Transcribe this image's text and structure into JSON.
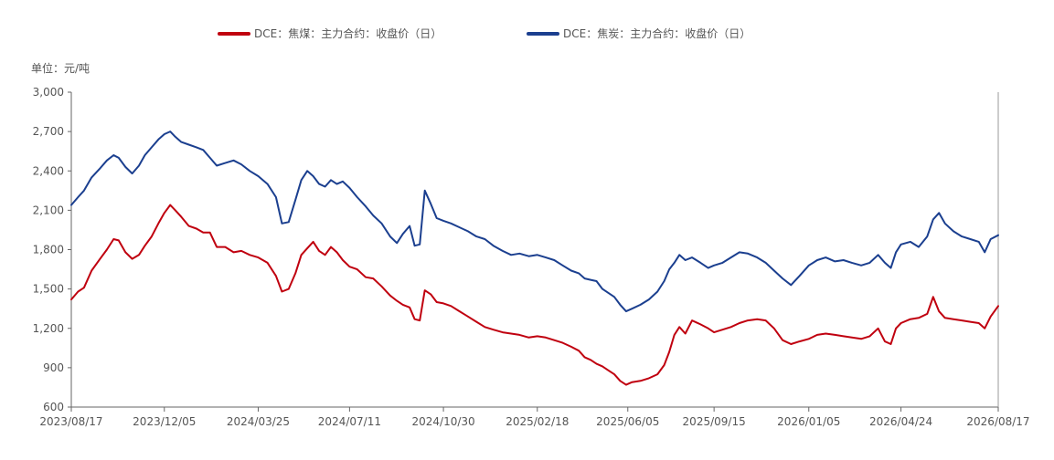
{
  "chart_data": {
    "type": "line",
    "title": "",
    "unit_label": "单位：元/吨",
    "xlabel": "",
    "ylabel": "",
    "ylim": [
      600,
      3000
    ],
    "yticks": [
      "3,000",
      "2,700",
      "2,400",
      "2,100",
      "1,800",
      "1,500",
      "1,200",
      "900",
      "600"
    ],
    "ytick_values": [
      3000,
      2700,
      2400,
      2100,
      1800,
      1500,
      1200,
      900,
      600
    ],
    "x_tick_labels": [
      "2023/08/17",
      "2023/12/05",
      "2024/03/25",
      "2024/07/11",
      "2024/10/30",
      "2025/02/18",
      "2025/06/05",
      "2025/09/15",
      "2026/01/05",
      "2026/04/24",
      "2026/08/17"
    ],
    "xlim": [
      "2023/08/17",
      "2026/08/17"
    ],
    "grid": false,
    "legend_position": "top-center",
    "series": [
      {
        "name": "DCE：焦煤：主力合约：收盘价（日）",
        "color": "#c0000f",
        "points": [
          [
            "2023/08/17",
            1420
          ],
          [
            "2023/08/25",
            1480
          ],
          [
            "2023/09/01",
            1510
          ],
          [
            "2023/09/10",
            1640
          ],
          [
            "2023/09/20",
            1730
          ],
          [
            "2023/09/28",
            1800
          ],
          [
            "2023/10/06",
            1880
          ],
          [
            "2023/10/12",
            1870
          ],
          [
            "2023/10/20",
            1780
          ],
          [
            "2023/10/28",
            1730
          ],
          [
            "2023/11/05",
            1760
          ],
          [
            "2023/11/12",
            1830
          ],
          [
            "2023/11/20",
            1900
          ],
          [
            "2023/11/28",
            2000
          ],
          [
            "2023/12/05",
            2080
          ],
          [
            "2023/12/12",
            2140
          ],
          [
            "2023/12/18",
            2100
          ],
          [
            "2023/12/25",
            2050
          ],
          [
            "2024/01/03",
            1980
          ],
          [
            "2024/01/12",
            1960
          ],
          [
            "2024/01/20",
            1930
          ],
          [
            "2024/01/28",
            1930
          ],
          [
            "2024/02/05",
            1820
          ],
          [
            "2024/02/15",
            1820
          ],
          [
            "2024/02/25",
            1780
          ],
          [
            "2024/03/05",
            1790
          ],
          [
            "2024/03/15",
            1760
          ],
          [
            "2024/03/25",
            1740
          ],
          [
            "2024/04/05",
            1700
          ],
          [
            "2024/04/15",
            1600
          ],
          [
            "2024/04/22",
            1480
          ],
          [
            "2024/04/30",
            1500
          ],
          [
            "2024/05/08",
            1620
          ],
          [
            "2024/05/15",
            1760
          ],
          [
            "2024/05/22",
            1810
          ],
          [
            "2024/05/29",
            1860
          ],
          [
            "2024/06/05",
            1790
          ],
          [
            "2024/06/12",
            1760
          ],
          [
            "2024/06/19",
            1820
          ],
          [
            "2024/06/26",
            1780
          ],
          [
            "2024/07/03",
            1720
          ],
          [
            "2024/07/11",
            1670
          ],
          [
            "2024/07/20",
            1650
          ],
          [
            "2024/07/30",
            1590
          ],
          [
            "2024/08/08",
            1580
          ],
          [
            "2024/08/18",
            1520
          ],
          [
            "2024/08/28",
            1450
          ],
          [
            "2024/09/05",
            1410
          ],
          [
            "2024/09/12",
            1380
          ],
          [
            "2024/09/20",
            1360
          ],
          [
            "2024/09/26",
            1270
          ],
          [
            "2024/10/02",
            1260
          ],
          [
            "2024/10/08",
            1490
          ],
          [
            "2024/10/15",
            1460
          ],
          [
            "2024/10/22",
            1400
          ],
          [
            "2024/10/30",
            1390
          ],
          [
            "2024/11/08",
            1370
          ],
          [
            "2024/11/18",
            1330
          ],
          [
            "2024/11/28",
            1290
          ],
          [
            "2024/12/08",
            1250
          ],
          [
            "2024/12/18",
            1210
          ],
          [
            "2024/12/28",
            1190
          ],
          [
            "2025/01/08",
            1170
          ],
          [
            "2025/01/18",
            1160
          ],
          [
            "2025/01/28",
            1150
          ],
          [
            "2025/02/08",
            1130
          ],
          [
            "2025/02/18",
            1140
          ],
          [
            "2025/02/28",
            1130
          ],
          [
            "2025/03/10",
            1110
          ],
          [
            "2025/03/20",
            1090
          ],
          [
            "2025/03/30",
            1060
          ],
          [
            "2025/04/08",
            1030
          ],
          [
            "2025/04/15",
            980
          ],
          [
            "2025/04/22",
            960
          ],
          [
            "2025/04/29",
            930
          ],
          [
            "2025/05/06",
            910
          ],
          [
            "2025/05/13",
            880
          ],
          [
            "2025/05/20",
            850
          ],
          [
            "2025/05/27",
            800
          ],
          [
            "2025/06/03",
            770
          ],
          [
            "2025/06/10",
            790
          ],
          [
            "2025/06/20",
            800
          ],
          [
            "2025/06/30",
            820
          ],
          [
            "2025/07/10",
            850
          ],
          [
            "2025/07/18",
            920
          ],
          [
            "2025/07/24",
            1020
          ],
          [
            "2025/07/30",
            1150
          ],
          [
            "2025/08/05",
            1210
          ],
          [
            "2025/08/12",
            1160
          ],
          [
            "2025/08/20",
            1260
          ],
          [
            "2025/08/30",
            1230
          ],
          [
            "2025/09/08",
            1200
          ],
          [
            "2025/09/15",
            1170
          ],
          [
            "2025/09/25",
            1190
          ],
          [
            "2025/10/05",
            1210
          ],
          [
            "2025/10/15",
            1240
          ],
          [
            "2025/10/25",
            1260
          ],
          [
            "2025/11/05",
            1270
          ],
          [
            "2025/11/15",
            1260
          ],
          [
            "2025/11/25",
            1200
          ],
          [
            "2025/12/05",
            1110
          ],
          [
            "2025/12/15",
            1080
          ],
          [
            "2025/12/25",
            1100
          ],
          [
            "2026/01/05",
            1120
          ],
          [
            "2026/01/15",
            1150
          ],
          [
            "2026/01/25",
            1160
          ],
          [
            "2026/02/05",
            1150
          ],
          [
            "2026/02/15",
            1140
          ],
          [
            "2026/02/25",
            1130
          ],
          [
            "2026/03/08",
            1120
          ],
          [
            "2026/03/18",
            1140
          ],
          [
            "2026/03/28",
            1200
          ],
          [
            "2026/04/05",
            1100
          ],
          [
            "2026/04/12",
            1080
          ],
          [
            "2026/04/18",
            1200
          ],
          [
            "2026/04/24",
            1240
          ],
          [
            "2026/05/05",
            1270
          ],
          [
            "2026/05/15",
            1280
          ],
          [
            "2026/05/25",
            1310
          ],
          [
            "2026/06/01",
            1440
          ],
          [
            "2026/06/08",
            1330
          ],
          [
            "2026/06/15",
            1280
          ],
          [
            "2026/06/25",
            1270
          ],
          [
            "2026/07/05",
            1260
          ],
          [
            "2026/07/15",
            1250
          ],
          [
            "2026/07/25",
            1240
          ],
          [
            "2026/08/01",
            1200
          ],
          [
            "2026/08/08",
            1290
          ],
          [
            "2026/08/17",
            1370
          ]
        ]
      },
      {
        "name": "DCE：焦炭：主力合约：收盘价（日）",
        "color": "#1b3f8f",
        "points": [
          [
            "2023/08/17",
            2140
          ],
          [
            "2023/08/25",
            2200
          ],
          [
            "2023/09/01",
            2250
          ],
          [
            "2023/09/10",
            2350
          ],
          [
            "2023/09/20",
            2420
          ],
          [
            "2023/09/28",
            2480
          ],
          [
            "2023/10/06",
            2520
          ],
          [
            "2023/10/12",
            2500
          ],
          [
            "2023/10/20",
            2430
          ],
          [
            "2023/10/28",
            2380
          ],
          [
            "2023/11/05",
            2440
          ],
          [
            "2023/11/12",
            2520
          ],
          [
            "2023/11/20",
            2580
          ],
          [
            "2023/11/28",
            2640
          ],
          [
            "2023/12/05",
            2680
          ],
          [
            "2023/12/12",
            2700
          ],
          [
            "2023/12/18",
            2660
          ],
          [
            "2023/12/25",
            2620
          ],
          [
            "2024/01/03",
            2600
          ],
          [
            "2024/01/12",
            2580
          ],
          [
            "2024/01/20",
            2560
          ],
          [
            "2024/01/28",
            2500
          ],
          [
            "2024/02/05",
            2440
          ],
          [
            "2024/02/15",
            2460
          ],
          [
            "2024/02/25",
            2480
          ],
          [
            "2024/03/05",
            2450
          ],
          [
            "2024/03/15",
            2400
          ],
          [
            "2024/03/25",
            2360
          ],
          [
            "2024/04/05",
            2300
          ],
          [
            "2024/04/15",
            2200
          ],
          [
            "2024/04/22",
            2000
          ],
          [
            "2024/04/30",
            2010
          ],
          [
            "2024/05/08",
            2180
          ],
          [
            "2024/05/15",
            2330
          ],
          [
            "2024/05/22",
            2400
          ],
          [
            "2024/05/29",
            2360
          ],
          [
            "2024/06/05",
            2300
          ],
          [
            "2024/06/12",
            2280
          ],
          [
            "2024/06/19",
            2330
          ],
          [
            "2024/06/26",
            2300
          ],
          [
            "2024/07/03",
            2320
          ],
          [
            "2024/07/11",
            2270
          ],
          [
            "2024/07/20",
            2200
          ],
          [
            "2024/07/30",
            2130
          ],
          [
            "2024/08/08",
            2060
          ],
          [
            "2024/08/18",
            2000
          ],
          [
            "2024/08/28",
            1900
          ],
          [
            "2024/09/05",
            1850
          ],
          [
            "2024/09/12",
            1920
          ],
          [
            "2024/09/20",
            1980
          ],
          [
            "2024/09/26",
            1830
          ],
          [
            "2024/10/02",
            1840
          ],
          [
            "2024/10/08",
            2250
          ],
          [
            "2024/10/15",
            2150
          ],
          [
            "2024/10/22",
            2040
          ],
          [
            "2024/10/30",
            2020
          ],
          [
            "2024/11/08",
            2000
          ],
          [
            "2024/11/18",
            1970
          ],
          [
            "2024/11/28",
            1940
          ],
          [
            "2024/12/08",
            1900
          ],
          [
            "2024/12/18",
            1880
          ],
          [
            "2024/12/28",
            1830
          ],
          [
            "2025/01/08",
            1790
          ],
          [
            "2025/01/18",
            1760
          ],
          [
            "2025/01/28",
            1770
          ],
          [
            "2025/02/08",
            1750
          ],
          [
            "2025/02/18",
            1760
          ],
          [
            "2025/02/28",
            1740
          ],
          [
            "2025/03/10",
            1720
          ],
          [
            "2025/03/20",
            1680
          ],
          [
            "2025/03/30",
            1640
          ],
          [
            "2025/04/08",
            1620
          ],
          [
            "2025/04/15",
            1580
          ],
          [
            "2025/04/22",
            1570
          ],
          [
            "2025/04/29",
            1560
          ],
          [
            "2025/05/06",
            1500
          ],
          [
            "2025/05/13",
            1470
          ],
          [
            "2025/05/20",
            1440
          ],
          [
            "2025/05/27",
            1380
          ],
          [
            "2025/06/03",
            1330
          ],
          [
            "2025/06/10",
            1350
          ],
          [
            "2025/06/20",
            1380
          ],
          [
            "2025/06/30",
            1420
          ],
          [
            "2025/07/10",
            1480
          ],
          [
            "2025/07/18",
            1560
          ],
          [
            "2025/07/24",
            1650
          ],
          [
            "2025/07/30",
            1700
          ],
          [
            "2025/08/05",
            1760
          ],
          [
            "2025/08/12",
            1720
          ],
          [
            "2025/08/20",
            1740
          ],
          [
            "2025/08/30",
            1700
          ],
          [
            "2025/09/08",
            1660
          ],
          [
            "2025/09/15",
            1680
          ],
          [
            "2025/09/25",
            1700
          ],
          [
            "2025/10/05",
            1740
          ],
          [
            "2025/10/15",
            1780
          ],
          [
            "2025/10/25",
            1770
          ],
          [
            "2025/11/05",
            1740
          ],
          [
            "2025/11/15",
            1700
          ],
          [
            "2025/11/25",
            1640
          ],
          [
            "2025/12/05",
            1580
          ],
          [
            "2025/12/15",
            1530
          ],
          [
            "2025/12/25",
            1600
          ],
          [
            "2026/01/05",
            1680
          ],
          [
            "2026/01/15",
            1720
          ],
          [
            "2026/01/25",
            1740
          ],
          [
            "2026/02/05",
            1710
          ],
          [
            "2026/02/15",
            1720
          ],
          [
            "2026/02/25",
            1700
          ],
          [
            "2026/03/08",
            1680
          ],
          [
            "2026/03/18",
            1700
          ],
          [
            "2026/03/28",
            1760
          ],
          [
            "2026/04/05",
            1700
          ],
          [
            "2026/04/12",
            1660
          ],
          [
            "2026/04/18",
            1780
          ],
          [
            "2026/04/24",
            1840
          ],
          [
            "2026/05/05",
            1860
          ],
          [
            "2026/05/15",
            1820
          ],
          [
            "2026/05/25",
            1900
          ],
          [
            "2026/06/01",
            2030
          ],
          [
            "2026/06/08",
            2080
          ],
          [
            "2026/06/15",
            2000
          ],
          [
            "2026/06/25",
            1940
          ],
          [
            "2026/07/05",
            1900
          ],
          [
            "2026/07/15",
            1880
          ],
          [
            "2026/07/25",
            1860
          ],
          [
            "2026/08/01",
            1780
          ],
          [
            "2026/08/08",
            1880
          ],
          [
            "2026/08/17",
            1910
          ]
        ]
      }
    ]
  }
}
